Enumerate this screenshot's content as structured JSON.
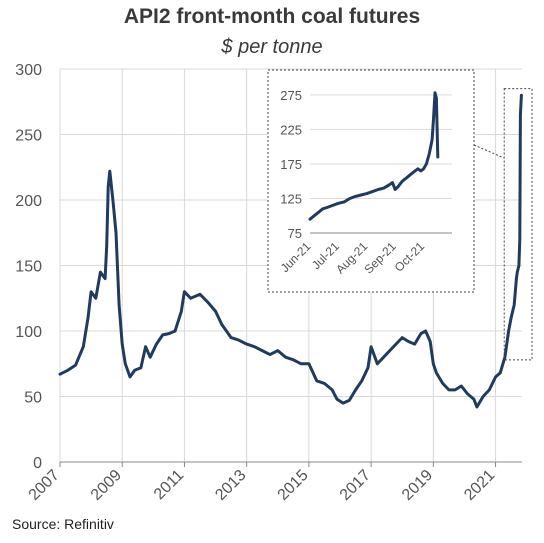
{
  "title": "API2 front-month coal futures",
  "subtitle": "$ per tonne",
  "source": "Source: Refinitiv",
  "colors": {
    "line": "#1f3b60",
    "grid": "#d9d9d9",
    "axis": "#888888",
    "text": "#555555"
  },
  "chart_data": [
    {
      "type": "line",
      "title": "API2 front-month coal futures",
      "subtitle": "$ per tonne",
      "xlabel": "",
      "ylabel": "",
      "xlim": [
        2007,
        2021.85
      ],
      "ylim": [
        0,
        300
      ],
      "grid": true,
      "x_ticks": [
        "2007",
        "2009",
        "2011",
        "2013",
        "2015",
        "2017",
        "2019",
        "2021"
      ],
      "y_ticks": [
        "0",
        "50",
        "100",
        "150",
        "200",
        "250",
        "300"
      ],
      "series": [
        {
          "x": [
            2007.0,
            2007.25,
            2007.5,
            2007.75,
            2007.9,
            2008.0,
            2008.15,
            2008.3,
            2008.45,
            2008.5,
            2008.55,
            2008.6,
            2008.7,
            2008.8,
            2008.9,
            2009.0,
            2009.1,
            2009.25,
            2009.4,
            2009.6,
            2009.75,
            2009.9,
            2010.1,
            2010.3,
            2010.5,
            2010.7,
            2010.9,
            2011.0,
            2011.2,
            2011.5,
            2011.75,
            2012.0,
            2012.2,
            2012.5,
            2012.75,
            2013.0,
            2013.25,
            2013.5,
            2013.75,
            2014.0,
            2014.25,
            2014.5,
            2014.75,
            2015.0,
            2015.25,
            2015.5,
            2015.75,
            2015.9,
            2016.1,
            2016.3,
            2016.5,
            2016.7,
            2016.9,
            2017.0,
            2017.2,
            2017.4,
            2017.6,
            2017.8,
            2018.0,
            2018.2,
            2018.4,
            2018.6,
            2018.75,
            2018.9,
            2019.0,
            2019.1,
            2019.3,
            2019.5,
            2019.7,
            2019.9,
            2020.1,
            2020.3,
            2020.4,
            2020.6,
            2020.8,
            2021.0,
            2021.15,
            2021.3,
            2021.42,
            2021.5,
            2021.6,
            2021.67,
            2021.7,
            2021.75,
            2021.78,
            2021.8,
            2021.83
          ],
          "values": [
            67,
            70,
            74,
            88,
            110,
            130,
            125,
            145,
            140,
            165,
            210,
            222,
            200,
            175,
            120,
            90,
            75,
            65,
            70,
            72,
            88,
            80,
            90,
            97,
            98,
            100,
            115,
            130,
            125,
            128,
            122,
            115,
            105,
            95,
            93,
            90,
            88,
            85,
            82,
            85,
            80,
            78,
            75,
            75,
            62,
            60,
            55,
            48,
            45,
            47,
            55,
            62,
            72,
            88,
            75,
            80,
            85,
            90,
            95,
            92,
            90,
            98,
            100,
            92,
            75,
            68,
            60,
            55,
            55,
            58,
            52,
            48,
            42,
            50,
            55,
            65,
            68,
            80,
            100,
            110,
            120,
            140,
            145,
            150,
            170,
            265,
            280
          ]
        }
      ]
    },
    {
      "type": "line",
      "title": "",
      "xlabel": "",
      "ylabel": "",
      "xlim": [
        0,
        5
      ],
      "ylim": [
        75,
        285
      ],
      "grid": true,
      "x_ticks": [
        "Jun-21",
        "Jul-21",
        "Aug-21",
        "Sep-21",
        "Oct-21"
      ],
      "y_ticks": [
        "75",
        "125",
        "175",
        "225",
        "275"
      ],
      "series": [
        {
          "x": [
            0.0,
            0.15,
            0.3,
            0.45,
            0.6,
            0.8,
            1.0,
            1.2,
            1.4,
            1.6,
            1.8,
            2.0,
            2.2,
            2.4,
            2.6,
            2.8,
            2.9,
            3.0,
            3.1,
            3.25,
            3.4,
            3.55,
            3.7,
            3.8,
            3.9,
            4.0,
            4.1,
            4.2,
            4.3,
            4.35,
            4.4,
            4.45,
            4.5
          ],
          "values": [
            95,
            100,
            105,
            110,
            112,
            115,
            118,
            120,
            125,
            128,
            130,
            132,
            135,
            138,
            140,
            145,
            148,
            138,
            142,
            150,
            155,
            160,
            165,
            168,
            165,
            168,
            175,
            190,
            210,
            240,
            278,
            270,
            185
          ]
        }
      ]
    }
  ]
}
